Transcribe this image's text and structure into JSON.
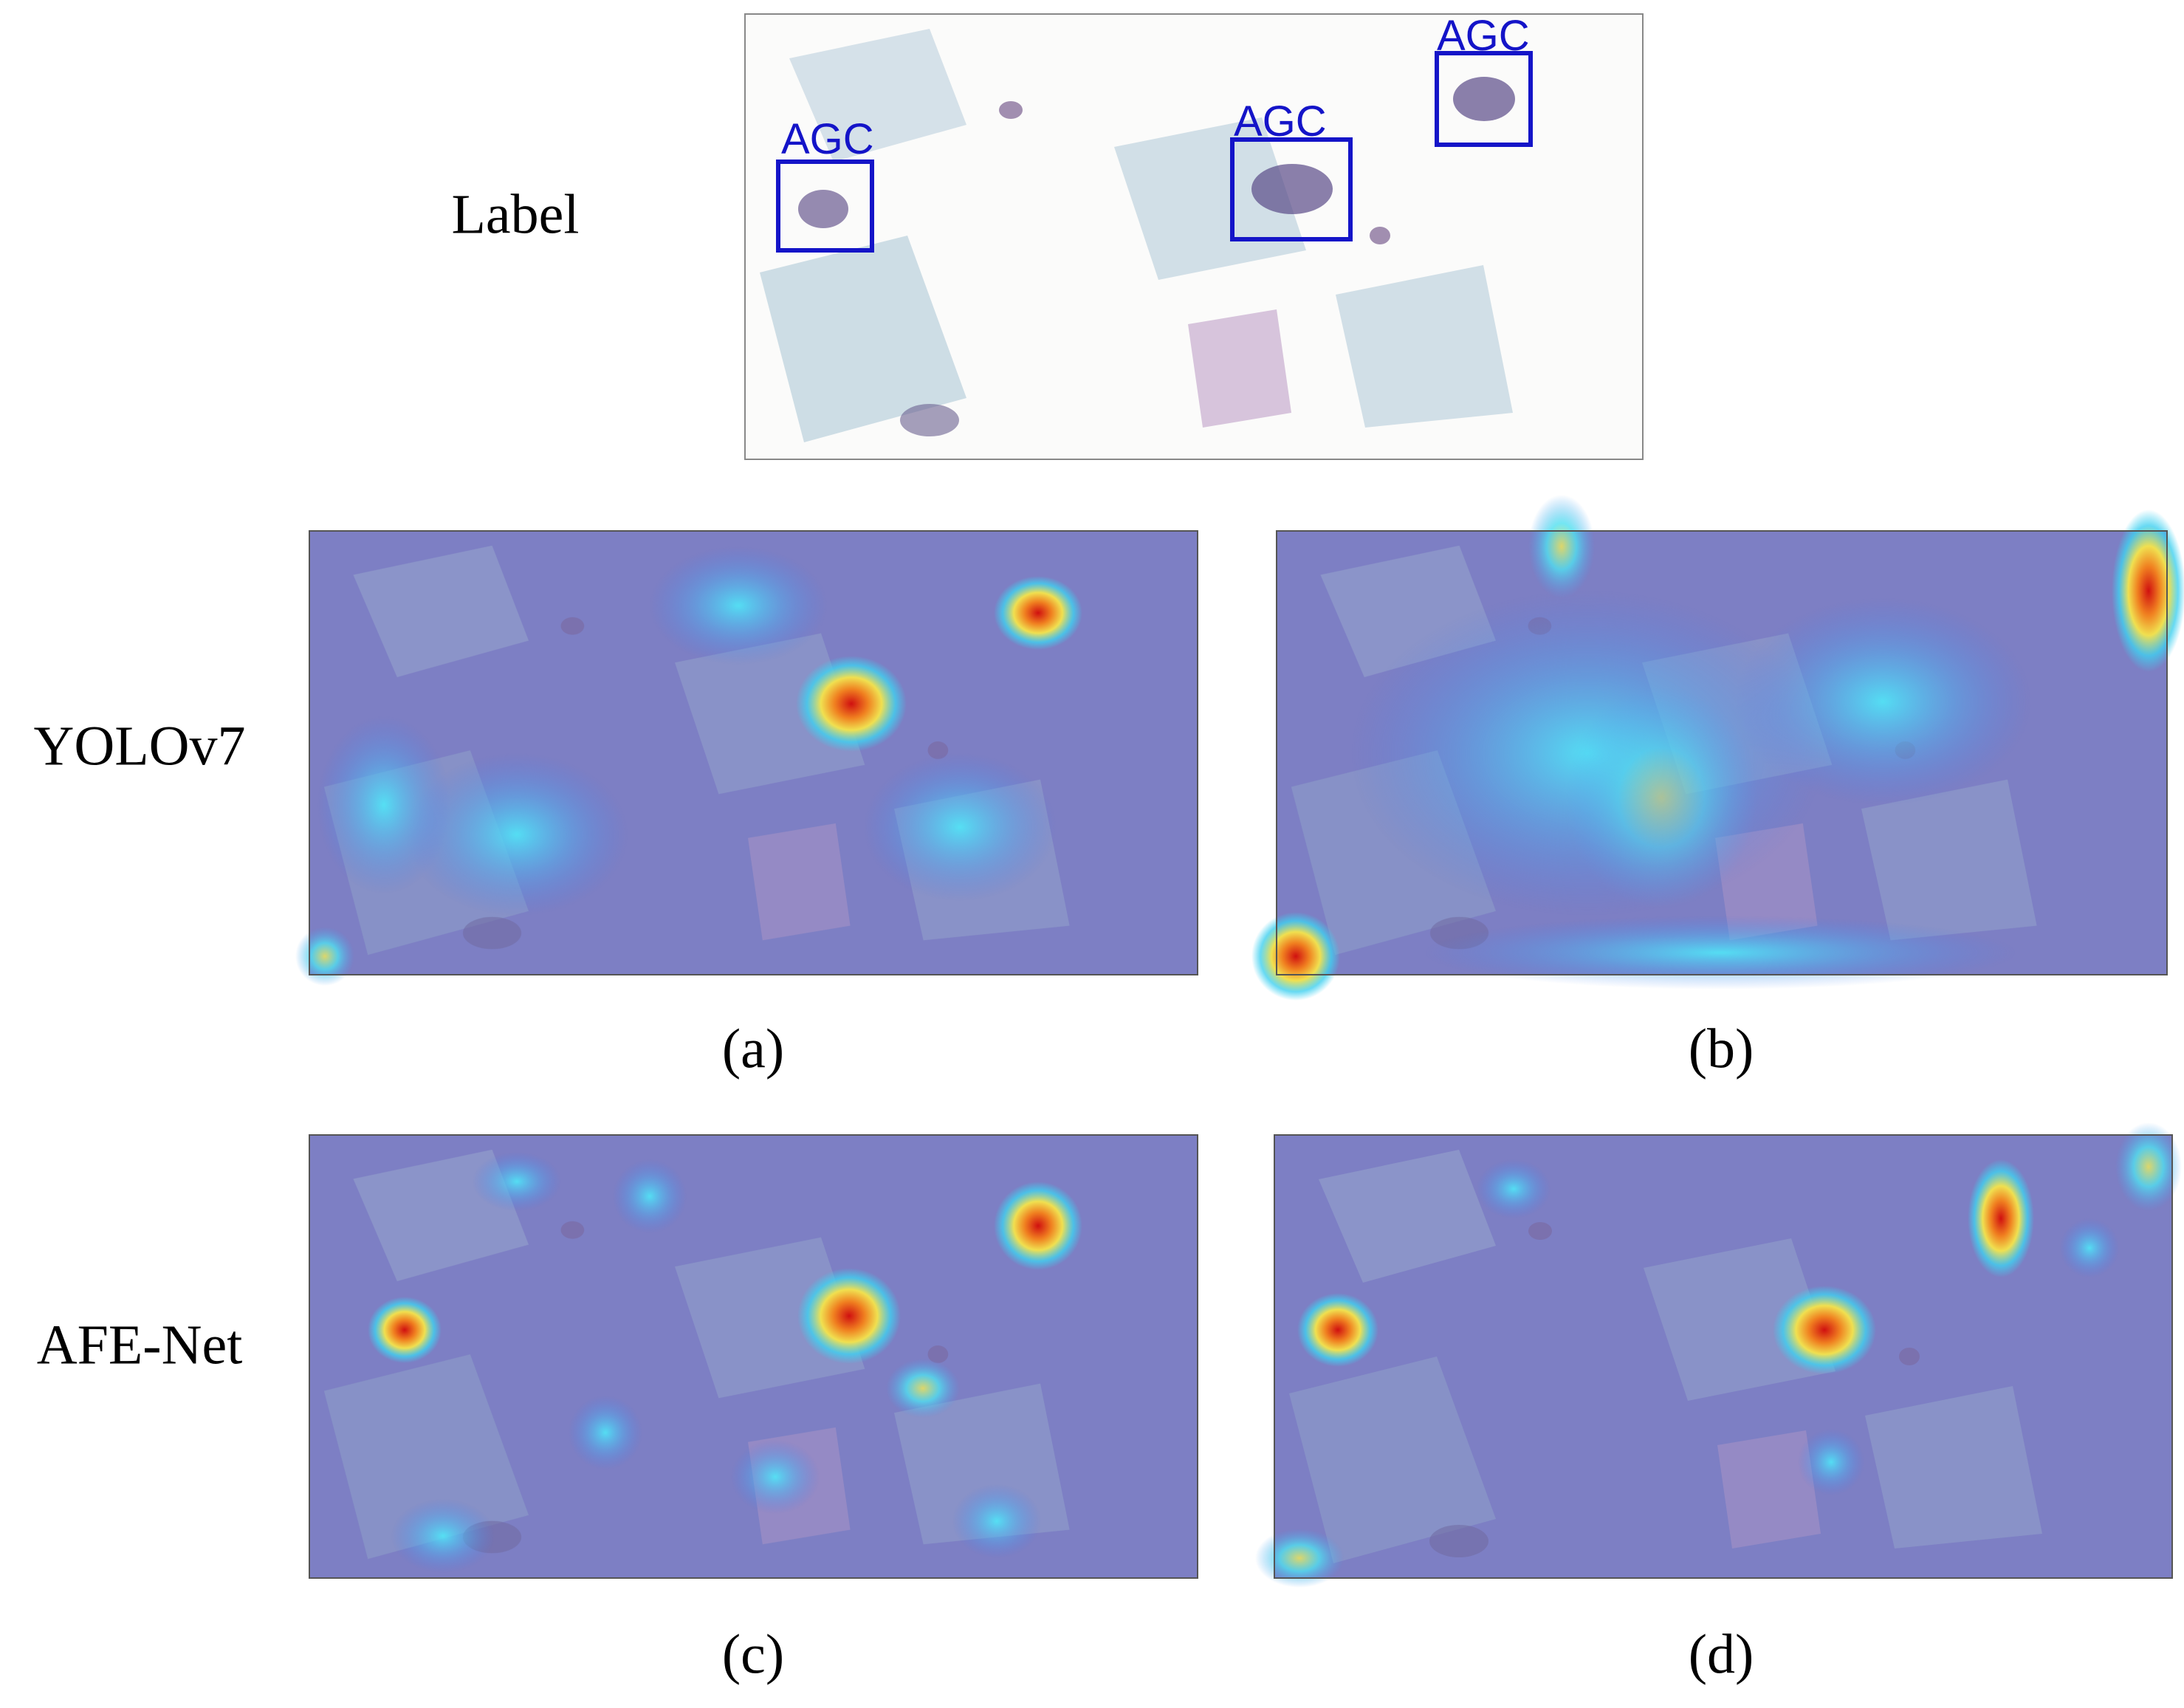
{
  "label_row": {
    "title": "Label",
    "boxes": [
      "AGC",
      "AGC",
      "AGC"
    ]
  },
  "rows": [
    {
      "title": "YOLOv7"
    },
    {
      "title": "AFE-Net"
    }
  ],
  "captions": [
    "(a)",
    "(b)",
    "(c)",
    "(d)"
  ]
}
